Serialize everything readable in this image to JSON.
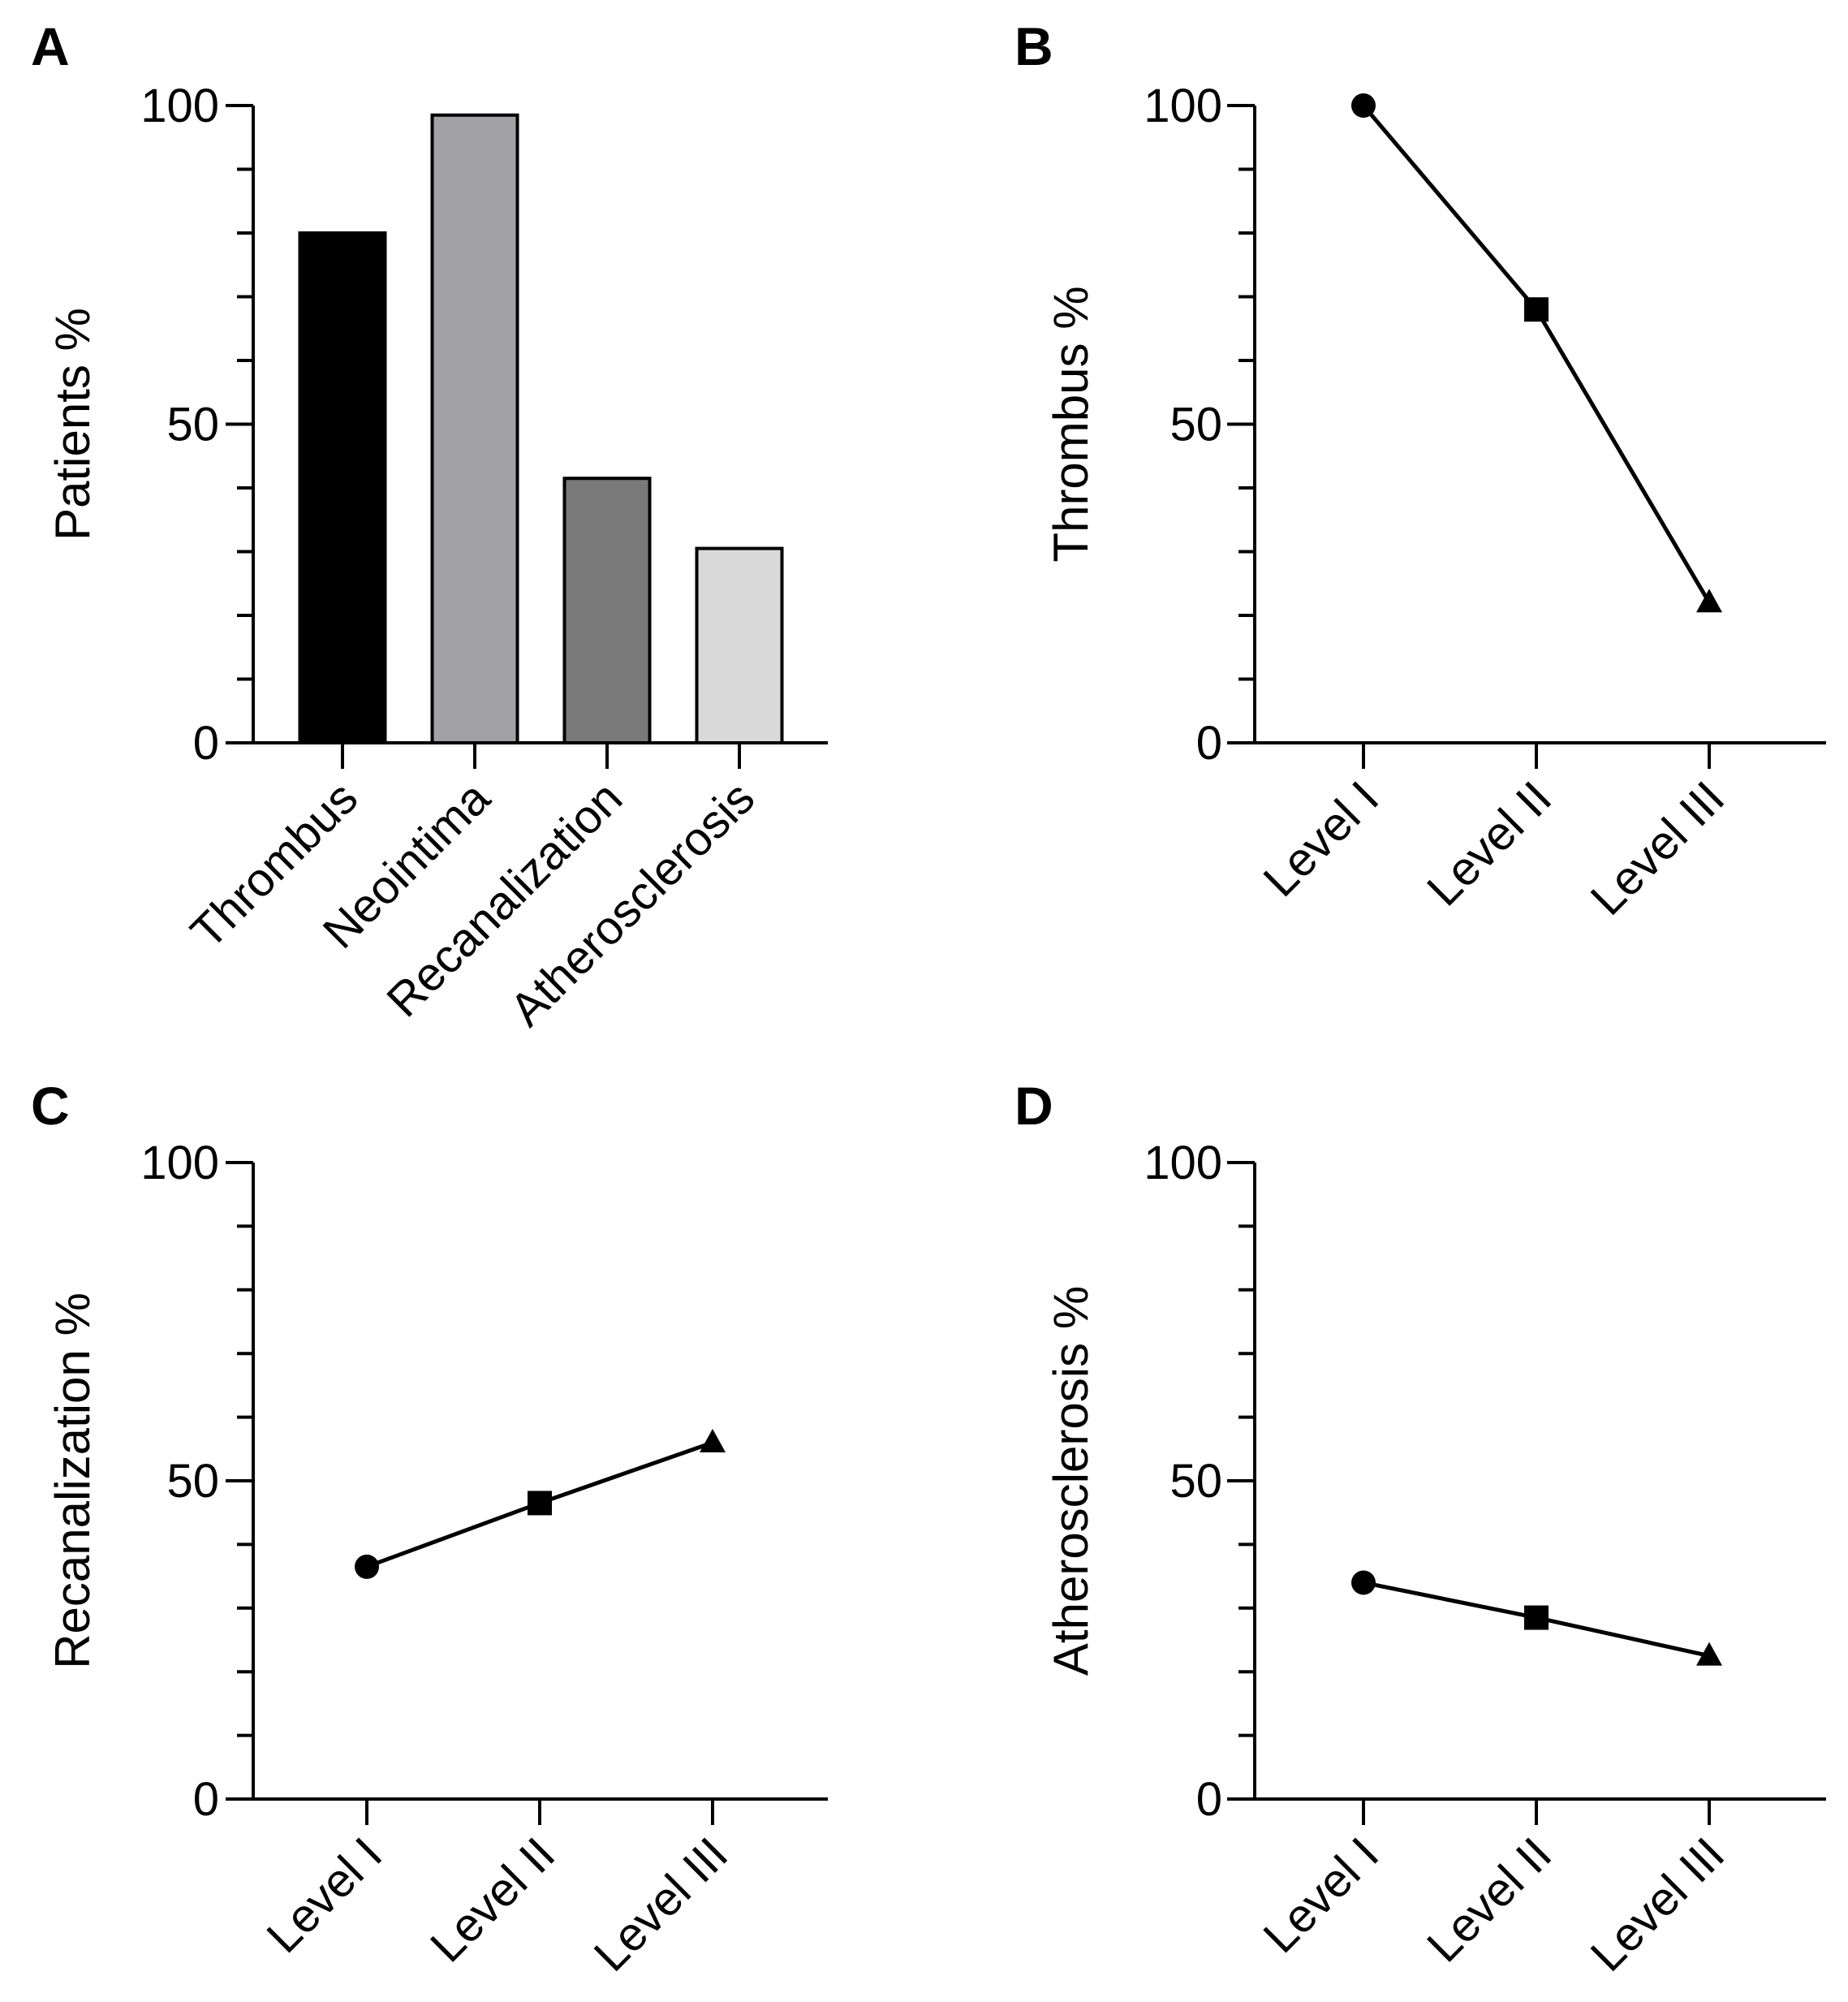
{
  "chart_data": [
    {
      "panel": "A",
      "type": "bar",
      "title": "",
      "xlabel": "",
      "ylabel": "Patients %",
      "ylim": [
        0,
        100
      ],
      "yticks": [
        0,
        50,
        100
      ],
      "categories": [
        "Thrombus",
        "Neointima",
        "Recanalization",
        "Atherosclerosis"
      ],
      "values": [
        80,
        98.5,
        41.5,
        30.5
      ],
      "colors": [
        "#000000",
        "#a2a2a6",
        "#7a7a7a",
        "#d9d9d9"
      ]
    },
    {
      "panel": "B",
      "type": "line",
      "title": "",
      "xlabel": "",
      "ylabel": "Thrombus %",
      "ylim": [
        0,
        100
      ],
      "yticks": [
        0,
        50,
        100
      ],
      "categories": [
        "Level I",
        "Level II",
        "Level III"
      ],
      "values": [
        100,
        68,
        22
      ],
      "markers": [
        "circle",
        "square",
        "triangle"
      ]
    },
    {
      "panel": "C",
      "type": "line",
      "title": "",
      "xlabel": "",
      "ylabel": "Recanalization %",
      "ylim": [
        0,
        100
      ],
      "yticks": [
        0,
        50,
        100
      ],
      "categories": [
        "Level I",
        "Level II",
        "Level III"
      ],
      "values": [
        36.5,
        46.5,
        56
      ],
      "markers": [
        "circle",
        "square",
        "triangle"
      ]
    },
    {
      "panel": "D",
      "type": "line",
      "title": "",
      "xlabel": "",
      "ylabel": "Atherosclerosis %",
      "ylim": [
        0,
        100
      ],
      "yticks": [
        0,
        50,
        100
      ],
      "categories": [
        "Level I",
        "Level II",
        "Level III"
      ],
      "values": [
        34,
        28.5,
        22.5
      ],
      "markers": [
        "circle",
        "square",
        "triangle"
      ]
    }
  ]
}
